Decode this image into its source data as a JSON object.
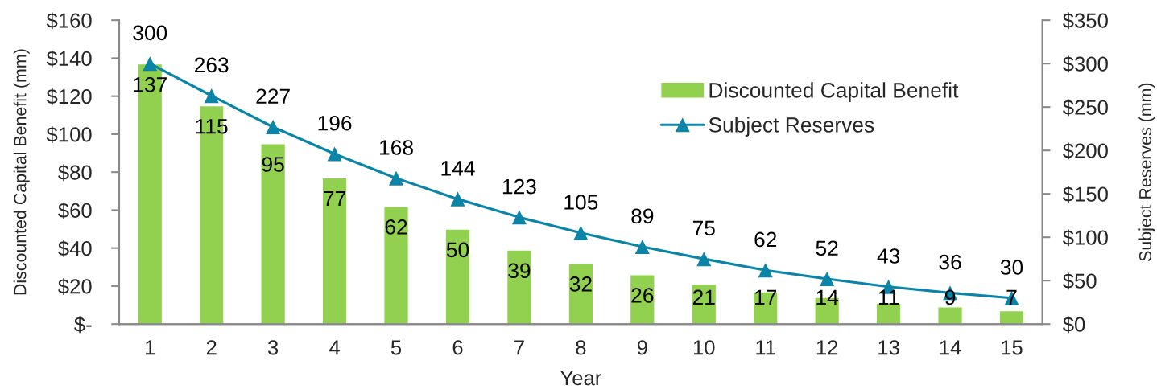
{
  "chart_data": {
    "type": "bar",
    "xlabel": "Year",
    "ylabel": "Discounted Capital Benefit (mm)",
    "y2label": "Subject Reserves (mm)",
    "categories": [
      "1",
      "2",
      "3",
      "4",
      "5",
      "6",
      "7",
      "8",
      "9",
      "10",
      "11",
      "12",
      "13",
      "14",
      "15"
    ],
    "series": [
      {
        "name": "Discounted Capital Benefit",
        "color": "#92d050",
        "values": [
          137,
          115,
          95,
          77,
          62,
          50,
          39,
          32,
          26,
          21,
          17,
          14,
          11,
          9,
          7
        ]
      },
      {
        "name": "Subject Reserves",
        "type": "line",
        "axis": "y2",
        "color": "#0a85a8",
        "marker": "triangle",
        "line_style": "solid",
        "values": [
          300,
          263,
          227,
          196,
          168,
          144,
          123,
          105,
          89,
          75,
          62,
          52,
          43,
          36,
          30
        ]
      }
    ],
    "ylim": [
      0,
      160
    ],
    "yticks": [
      {
        "value": 0,
        "label": "$-"
      },
      {
        "value": 20,
        "label": "$20"
      },
      {
        "value": 40,
        "label": "$40"
      },
      {
        "value": 60,
        "label": "$60"
      },
      {
        "value": 80,
        "label": "$80"
      },
      {
        "value": 100,
        "label": "$100"
      },
      {
        "value": 120,
        "label": "$120"
      },
      {
        "value": 140,
        "label": "$140"
      },
      {
        "value": 160,
        "label": "$160"
      }
    ],
    "y2lim": [
      0,
      350
    ],
    "y2ticks": [
      {
        "value": 0,
        "label": "$0"
      },
      {
        "value": 50,
        "label": "$50"
      },
      {
        "value": 100,
        "label": "$100"
      },
      {
        "value": 150,
        "label": "$150"
      },
      {
        "value": 200,
        "label": "$200"
      },
      {
        "value": 250,
        "label": "$250"
      },
      {
        "value": 300,
        "label": "$300"
      },
      {
        "value": 350,
        "label": "$350"
      }
    ],
    "data_labels": true,
    "legend": "top right",
    "grid": false
  }
}
